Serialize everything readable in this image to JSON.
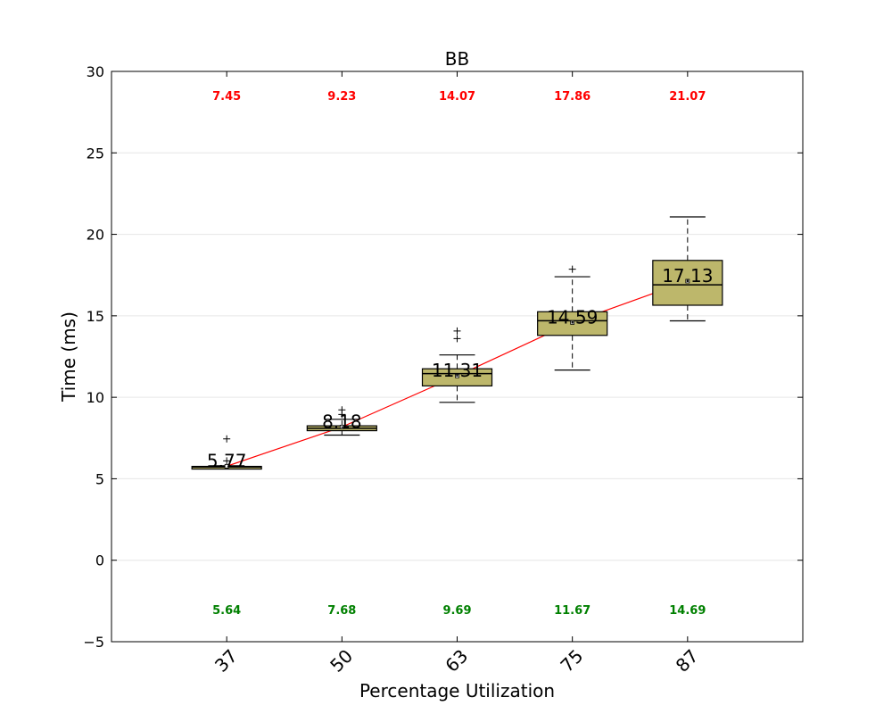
{
  "chart_data": {
    "type": "boxplot",
    "title": "BB",
    "xlabel": "Percentage Utilization",
    "ylabel": "Time (ms)",
    "ylim": [
      -5,
      30
    ],
    "yticks": [
      "−5",
      "0",
      "5",
      "10",
      "15",
      "20",
      "25",
      "30"
    ],
    "ytick_values": [
      -5,
      0,
      5,
      10,
      15,
      20,
      25,
      30
    ],
    "categories": [
      "37",
      "50",
      "63",
      "75",
      "87"
    ],
    "grid": true,
    "colors": {
      "box_fill": "#bdb76b",
      "mean_line": "#ff0000",
      "max_text": "#ff0000",
      "min_text": "#008000",
      "grid": "#e6e6e6"
    },
    "boxes": [
      {
        "category": "37",
        "whisker_low": 5.64,
        "q1": 5.68,
        "median": 5.72,
        "q3": 5.76,
        "whisker_high": 5.8,
        "mean": 5.77,
        "mean_label": "5.77",
        "outliers": [
          7.45,
          6.1
        ],
        "max": 7.45,
        "max_label": "7.45",
        "min": 5.64,
        "min_label": "5.64"
      },
      {
        "category": "50",
        "whisker_low": 7.68,
        "q1": 7.95,
        "median": 8.1,
        "q3": 8.25,
        "whisker_high": 8.65,
        "mean": 8.18,
        "mean_label": "8.18",
        "outliers": [
          9.23,
          8.95
        ],
        "max": 9.23,
        "max_label": "9.23",
        "min": 7.68,
        "min_label": "7.68"
      },
      {
        "category": "63",
        "whisker_low": 9.69,
        "q1": 10.7,
        "median": 11.45,
        "q3": 11.75,
        "whisker_high": 12.6,
        "mean": 11.31,
        "mean_label": "11.31",
        "outliers": [
          14.07,
          13.6
        ],
        "max": 14.07,
        "max_label": "14.07",
        "min": 9.69,
        "min_label": "9.69"
      },
      {
        "category": "75",
        "whisker_low": 11.67,
        "q1": 13.8,
        "median": 14.7,
        "q3": 15.25,
        "whisker_high": 17.4,
        "mean": 14.59,
        "mean_label": "14.59",
        "outliers": [
          17.86
        ],
        "max": 17.86,
        "max_label": "17.86",
        "min": 11.67,
        "min_label": "11.67"
      },
      {
        "category": "87",
        "whisker_low": 14.69,
        "q1": 15.65,
        "median": 16.9,
        "q3": 18.4,
        "whisker_high": 21.07,
        "mean": 17.13,
        "mean_label": "17.13",
        "outliers": [],
        "max": 21.07,
        "max_label": "21.07",
        "min": 14.69,
        "min_label": "14.69"
      }
    ]
  }
}
